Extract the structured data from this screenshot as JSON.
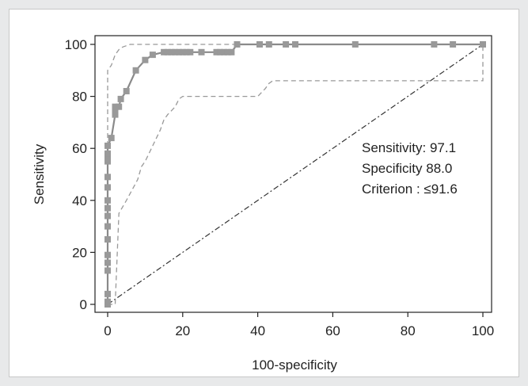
{
  "chart_data": {
    "type": "line",
    "title": "",
    "xlabel": "100-specificity",
    "ylabel": "Sensitivity",
    "xlim": [
      -3,
      103
    ],
    "ylim": [
      -3,
      103
    ],
    "xticks": [
      0,
      20,
      40,
      60,
      80,
      100
    ],
    "yticks": [
      0,
      20,
      40,
      60,
      80,
      100
    ],
    "grid": false,
    "series": [
      {
        "role": "roc-curve",
        "color": "#999999",
        "marker": "square",
        "x": [
          0,
          0,
          0,
          0,
          0,
          0,
          0,
          0,
          0,
          0,
          0,
          0,
          0,
          0,
          0,
          0,
          0,
          0,
          1,
          2,
          2,
          2,
          3,
          3.5,
          5,
          7.5,
          10,
          12,
          15,
          16,
          17,
          18,
          19,
          20,
          21,
          22,
          25,
          29,
          30,
          31,
          32,
          33,
          34.5,
          40.5,
          43,
          47.5,
          50,
          66,
          87,
          92,
          100
        ],
        "y": [
          0,
          1,
          4,
          13,
          16,
          19,
          25,
          30,
          34,
          37,
          40,
          45,
          49,
          55,
          56,
          57,
          58,
          61,
          64,
          73,
          75,
          76,
          76,
          79,
          82,
          90,
          94,
          96,
          97,
          97,
          97,
          97,
          97,
          97,
          97,
          97,
          97,
          97,
          97,
          97,
          97,
          97,
          100,
          100,
          100,
          100,
          100,
          100,
          100,
          100,
          100
        ]
      },
      {
        "role": "upper-ci",
        "color": "#999999",
        "style": "dashed",
        "x": [
          0,
          0,
          1,
          2,
          3,
          4,
          6,
          8,
          15,
          30,
          40,
          60,
          80,
          100
        ],
        "y": [
          0,
          90,
          92,
          96,
          98,
          99,
          100,
          100,
          100,
          100,
          100,
          100,
          100,
          100
        ]
      },
      {
        "role": "lower-ci",
        "color": "#999999",
        "style": "dashed",
        "x": [
          0,
          2,
          3,
          5,
          8,
          9,
          10,
          12,
          14,
          15,
          16,
          18,
          19,
          20,
          24,
          40,
          42,
          43,
          44,
          60,
          80,
          100,
          100
        ],
        "y": [
          0,
          0,
          35,
          40,
          48,
          53,
          55,
          61,
          67,
          71,
          73,
          76,
          79,
          80,
          80,
          80,
          83,
          85,
          86,
          86,
          86,
          86,
          100
        ]
      },
      {
        "role": "reference-diagonal",
        "color": "#333333",
        "style": "dashdot",
        "x": [
          0,
          100
        ],
        "y": [
          0,
          100
        ]
      }
    ],
    "annotations": [
      "Sensitivity: 97.1",
      "Specificity 88.0",
      "Criterion : ≤91.6"
    ]
  }
}
